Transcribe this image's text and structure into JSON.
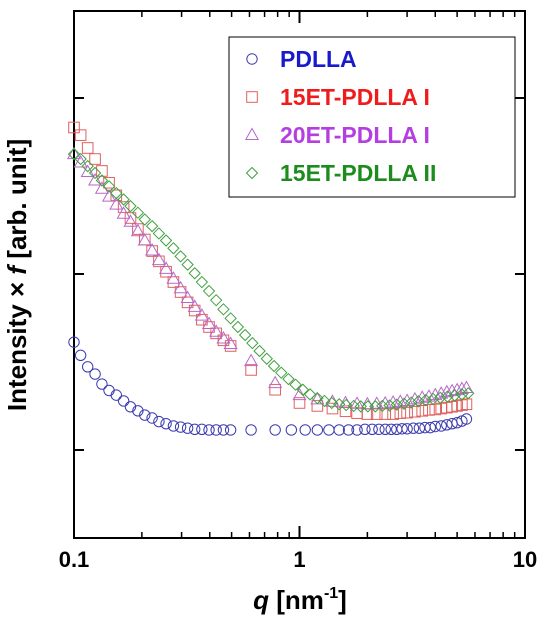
{
  "chart_data": {
    "type": "scatter",
    "xscale": "log",
    "yscale": "log",
    "xlim": [
      0.1,
      10
    ],
    "x_ticks": [
      "0.1",
      "1",
      "10"
    ],
    "y_ticks_labeled": false,
    "grid": false,
    "legend_position": "top-right",
    "xlabel": {
      "var": "q",
      "unit_prefix": " [nm",
      "exp": "-1",
      "unit_suffix": "]"
    },
    "ylabel": {
      "prefix": "Intensity × ",
      "var": "f",
      "suffix": " [arb. unit]"
    },
    "series": [
      {
        "name": "PDLLA",
        "marker": "circle",
        "color": "#3b3bb0",
        "label_color": "#1a1acc",
        "x": [
          0.1,
          0.107,
          0.115,
          0.124,
          0.133,
          0.143,
          0.154,
          0.166,
          0.178,
          0.192,
          0.206,
          0.222,
          0.238,
          0.256,
          0.276,
          0.297,
          0.319,
          0.343,
          0.369,
          0.397,
          0.427,
          0.46,
          0.495,
          0.61,
          0.78,
          0.92,
          1.06,
          1.2,
          1.35,
          1.5,
          1.65,
          1.8,
          1.95,
          2.1,
          2.25,
          2.4,
          2.55,
          2.7,
          2.85,
          3.0,
          3.2,
          3.4,
          3.6,
          3.8,
          4.0,
          4.25,
          4.5,
          4.75,
          5.0,
          5.25,
          5.5
        ],
        "y": [
          4.1,
          3.45,
          2.97,
          2.7,
          2.37,
          2.18,
          2.05,
          1.9,
          1.76,
          1.67,
          1.58,
          1.52,
          1.45,
          1.41,
          1.37,
          1.35,
          1.33,
          1.31,
          1.31,
          1.3,
          1.3,
          1.3,
          1.3,
          1.3,
          1.3,
          1.3,
          1.3,
          1.3,
          1.3,
          1.3,
          1.3,
          1.3,
          1.31,
          1.31,
          1.31,
          1.31,
          1.31,
          1.31,
          1.32,
          1.32,
          1.33,
          1.33,
          1.34,
          1.34,
          1.36,
          1.37,
          1.39,
          1.41,
          1.43,
          1.46,
          1.5
        ]
      },
      {
        "name": "15ET-PDLLA I",
        "marker": "square",
        "color": "#e06060",
        "label_color": "#ee1c1c",
        "x": [
          0.1,
          0.107,
          0.115,
          0.124,
          0.133,
          0.143,
          0.154,
          0.166,
          0.178,
          0.192,
          0.206,
          0.222,
          0.238,
          0.256,
          0.276,
          0.297,
          0.319,
          0.343,
          0.369,
          0.397,
          0.427,
          0.46,
          0.495,
          0.61,
          0.78,
          1.0,
          1.2,
          1.4,
          1.6,
          1.8,
          2.0,
          2.2,
          2.4,
          2.6,
          2.8,
          3.0,
          3.25,
          3.5,
          3.75,
          4.0,
          4.25,
          4.5,
          4.75,
          5.0,
          5.25,
          5.5
        ],
        "y": [
          68,
          61.5,
          52,
          45,
          38.5,
          33,
          28,
          24,
          20.8,
          18,
          15.7,
          13.5,
          11.8,
          10.3,
          9,
          7.9,
          6.9,
          6.2,
          5.5,
          5.0,
          4.6,
          4.2,
          3.9,
          2.85,
          2.2,
          1.85,
          1.78,
          1.72,
          1.66,
          1.62,
          1.6,
          1.6,
          1.6,
          1.6,
          1.62,
          1.63,
          1.65,
          1.67,
          1.69,
          1.7,
          1.72,
          1.74,
          1.76,
          1.78,
          1.8,
          1.82
        ]
      },
      {
        "name": "20ET-PDLLA I",
        "marker": "triangle",
        "color": "#b868c8",
        "label_color": "#b43ee0",
        "x": [
          0.1,
          0.107,
          0.115,
          0.124,
          0.133,
          0.143,
          0.154,
          0.166,
          0.178,
          0.192,
          0.206,
          0.222,
          0.238,
          0.256,
          0.276,
          0.297,
          0.319,
          0.343,
          0.369,
          0.397,
          0.427,
          0.46,
          0.495,
          0.61,
          0.78,
          1.0,
          1.2,
          1.4,
          1.6,
          1.8,
          2.0,
          2.2,
          2.4,
          2.6,
          2.8,
          3.0,
          3.25,
          3.5,
          3.75,
          4.0,
          4.25,
          4.5,
          4.75,
          5.0,
          5.25,
          5.5
        ],
        "y": [
          48,
          43,
          38,
          34,
          30.5,
          27.5,
          24.8,
          22,
          19.8,
          17.5,
          15.5,
          13.6,
          12,
          10.7,
          9.4,
          8.3,
          7.3,
          6.5,
          5.8,
          5.2,
          4.7,
          4.3,
          4.0,
          3.2,
          2.4,
          2.05,
          1.94,
          1.88,
          1.85,
          1.83,
          1.82,
          1.83,
          1.84,
          1.86,
          1.88,
          1.9,
          1.94,
          1.98,
          2.01,
          2.05,
          2.09,
          2.13,
          2.16,
          2.19,
          2.22,
          2.25
        ]
      },
      {
        "name": "15ET-PDLLA II",
        "marker": "diamond",
        "color": "#40a040",
        "label_color": "#1c8c1c",
        "x": [
          0.1,
          0.107,
          0.115,
          0.124,
          0.133,
          0.143,
          0.154,
          0.166,
          0.178,
          0.192,
          0.206,
          0.222,
          0.238,
          0.256,
          0.276,
          0.297,
          0.319,
          0.343,
          0.369,
          0.397,
          0.427,
          0.46,
          0.495,
          0.533,
          0.574,
          0.618,
          0.665,
          0.716,
          0.771,
          0.83,
          0.893,
          0.961,
          1.035,
          1.114,
          1.2,
          1.29,
          1.39,
          1.5,
          1.61,
          1.74,
          1.87,
          2.01,
          2.17,
          2.33,
          2.51,
          2.7,
          2.91,
          3.13,
          3.37,
          3.63,
          3.91,
          4.21,
          4.53,
          4.88,
          5.25,
          5.6
        ],
        "y": [
          48,
          45,
          41,
          37.5,
          34,
          31.5,
          28.8,
          26.5,
          24.3,
          22.3,
          20.4,
          18.7,
          17,
          15.5,
          14,
          12.6,
          11.3,
          10.1,
          9,
          8,
          7.1,
          6.3,
          5.6,
          5.0,
          4.5,
          4.05,
          3.65,
          3.3,
          3.0,
          2.75,
          2.53,
          2.35,
          2.2,
          2.07,
          1.97,
          1.9,
          1.85,
          1.82,
          1.8,
          1.78,
          1.77,
          1.77,
          1.77,
          1.78,
          1.79,
          1.81,
          1.83,
          1.86,
          1.89,
          1.92,
          1.95,
          1.98,
          2.01,
          2.04,
          2.07,
          2.1
        ]
      }
    ]
  }
}
